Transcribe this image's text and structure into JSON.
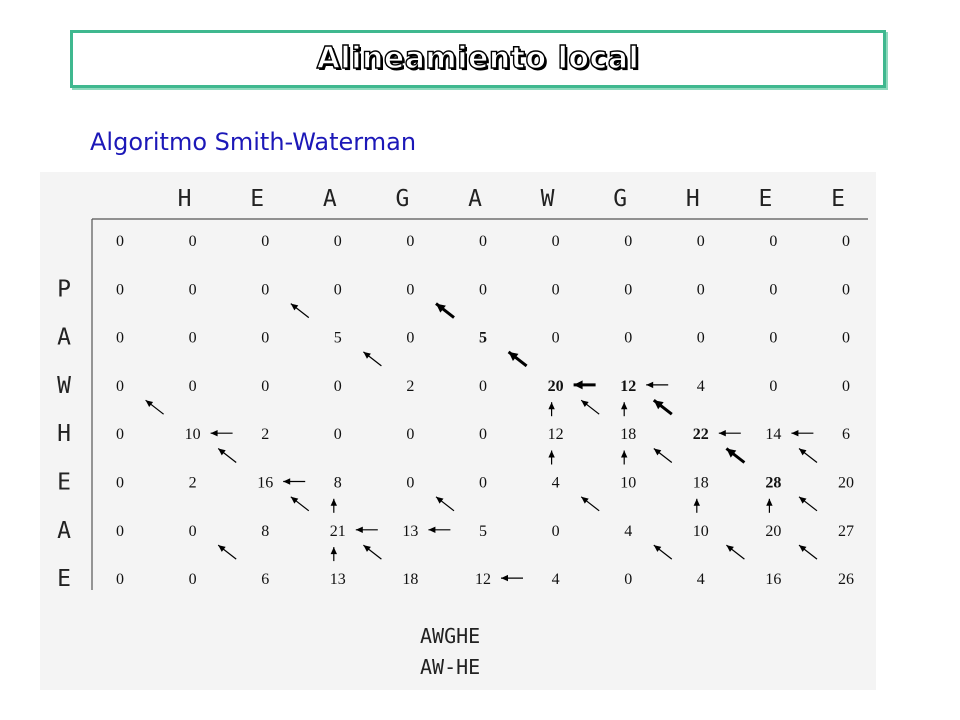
{
  "title": "Alineamiento local",
  "subtitle": "Algoritmo Smith-Waterman",
  "matrix": {
    "column_letters": [
      "H",
      "E",
      "A",
      "G",
      "A",
      "W",
      "G",
      "H",
      "E",
      "E"
    ],
    "row_letters": [
      "P",
      "A",
      "W",
      "H",
      "E",
      "A",
      "E"
    ],
    "rows": [
      [
        "0",
        "0",
        "0",
        "0",
        "0",
        "0",
        "0",
        "0",
        "0",
        "0",
        "0"
      ],
      [
        "0",
        "0",
        "0",
        "0",
        "0",
        "0",
        "0",
        "0",
        "0",
        "0",
        "0"
      ],
      [
        "0",
        "0",
        "0",
        "5",
        "0",
        "5",
        "0",
        "0",
        "0",
        "0",
        "0"
      ],
      [
        "0",
        "0",
        "0",
        "0",
        "2",
        "0",
        "20",
        "12",
        "4",
        "0",
        "0"
      ],
      [
        "0",
        "10",
        "2",
        "0",
        "0",
        "0",
        "12",
        "18",
        "22",
        "14",
        "6"
      ],
      [
        "0",
        "2",
        "16",
        "8",
        "0",
        "0",
        "4",
        "10",
        "18",
        "28",
        "20"
      ],
      [
        "0",
        "0",
        "8",
        "21",
        "13",
        "5",
        "0",
        "4",
        "10",
        "20",
        "27"
      ],
      [
        "0",
        "0",
        "6",
        "13",
        "18",
        "12",
        "4",
        "0",
        "4",
        "16",
        "26"
      ]
    ],
    "bold_cells": [
      [
        2,
        5
      ],
      [
        3,
        6
      ],
      [
        3,
        7
      ],
      [
        4,
        8
      ],
      [
        5,
        9
      ]
    ],
    "pointers": [
      {
        "row": 2,
        "col": 3,
        "dir": "diag"
      },
      {
        "row": 2,
        "col": 5,
        "dir": "diag",
        "bold": true
      },
      {
        "row": 3,
        "col": 4,
        "dir": "diag"
      },
      {
        "row": 3,
        "col": 6,
        "dir": "diag",
        "bold": true
      },
      {
        "row": 3,
        "col": 6,
        "dir": "left",
        "bold": true
      },
      {
        "row": 3,
        "col": 7,
        "dir": "left"
      },
      {
        "row": 4,
        "col": 1,
        "dir": "diag"
      },
      {
        "row": 4,
        "col": 1,
        "dir": "left"
      },
      {
        "row": 4,
        "col": 6,
        "dir": "up"
      },
      {
        "row": 4,
        "col": 7,
        "dir": "up"
      },
      {
        "row": 4,
        "col": 7,
        "dir": "diag"
      },
      {
        "row": 4,
        "col": 8,
        "dir": "diag",
        "bold": true
      },
      {
        "row": 4,
        "col": 8,
        "dir": "left"
      },
      {
        "row": 4,
        "col": 9,
        "dir": "left"
      },
      {
        "row": 5,
        "col": 2,
        "dir": "diag"
      },
      {
        "row": 5,
        "col": 2,
        "dir": "left"
      },
      {
        "row": 5,
        "col": 6,
        "dir": "up"
      },
      {
        "row": 5,
        "col": 7,
        "dir": "up"
      },
      {
        "row": 5,
        "col": 8,
        "dir": "diag"
      },
      {
        "row": 5,
        "col": 9,
        "dir": "diag",
        "bold": true
      },
      {
        "row": 5,
        "col": 10,
        "dir": "diag"
      },
      {
        "row": 6,
        "col": 3,
        "dir": "diag"
      },
      {
        "row": 6,
        "col": 3,
        "dir": "up"
      },
      {
        "row": 6,
        "col": 3,
        "dir": "left"
      },
      {
        "row": 6,
        "col": 4,
        "dir": "left"
      },
      {
        "row": 6,
        "col": 5,
        "dir": "diag"
      },
      {
        "row": 6,
        "col": 7,
        "dir": "diag"
      },
      {
        "row": 6,
        "col": 8,
        "dir": "up"
      },
      {
        "row": 6,
        "col": 9,
        "dir": "up"
      },
      {
        "row": 6,
        "col": 10,
        "dir": "diag"
      },
      {
        "row": 7,
        "col": 2,
        "dir": "diag"
      },
      {
        "row": 7,
        "col": 3,
        "dir": "up"
      },
      {
        "row": 7,
        "col": 4,
        "dir": "diag"
      },
      {
        "row": 7,
        "col": 5,
        "dir": "left"
      },
      {
        "row": 7,
        "col": 8,
        "dir": "diag"
      },
      {
        "row": 7,
        "col": 9,
        "dir": "diag"
      },
      {
        "row": 7,
        "col": 10,
        "dir": "diag"
      }
    ]
  },
  "alignment": {
    "top": "AWGHE",
    "bottom": "AW-HE"
  }
}
